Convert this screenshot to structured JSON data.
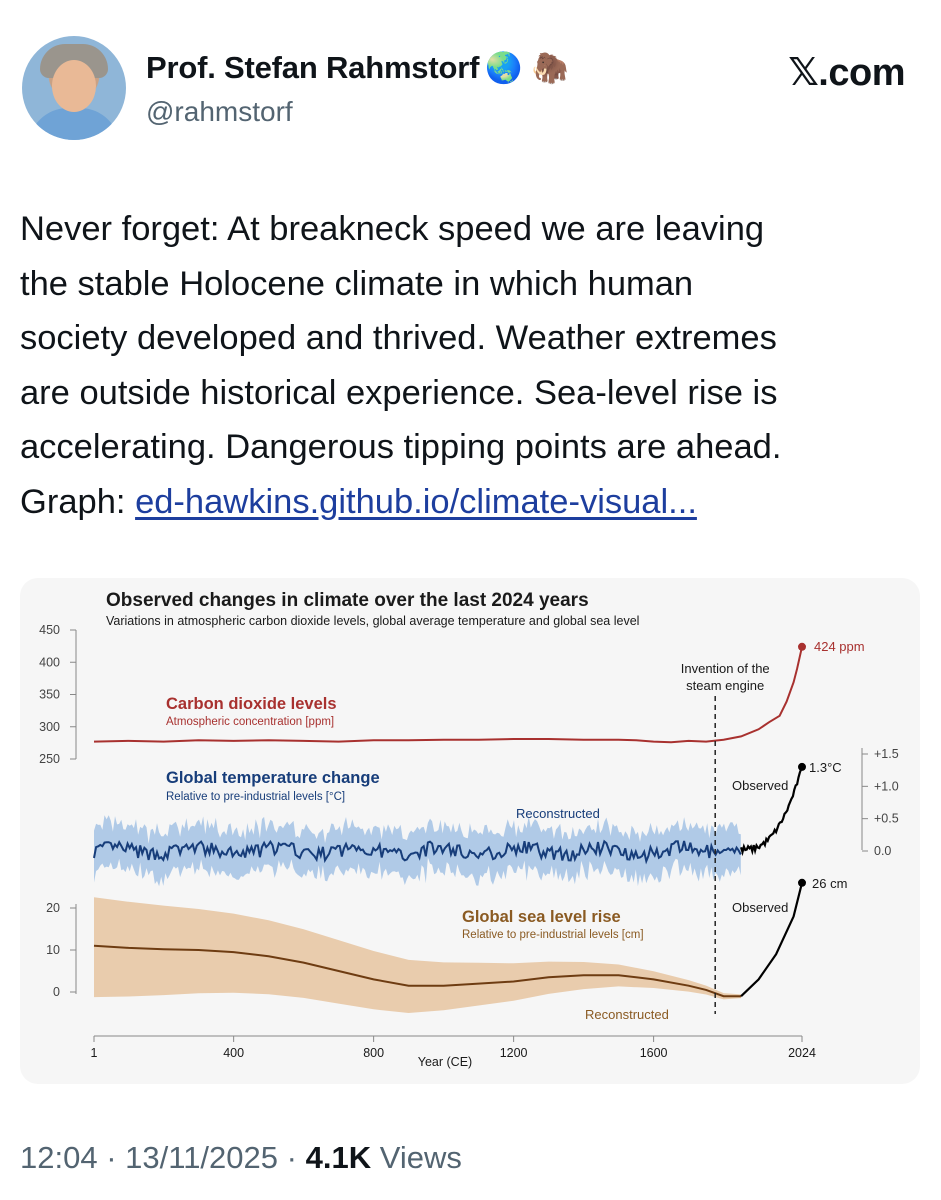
{
  "author": {
    "name": "Prof. Stefan Rahmstorf",
    "badges": "🌏 🦣",
    "handle": "@rahmstorf"
  },
  "brand": "𝕏.com",
  "tweet": {
    "lines": [
      "Never forget: At breakneck speed we are leaving",
      "the stable Holocene climate in which human",
      "society developed and thrived. Weather extremes",
      "are outside historical experience. Sea-level rise is",
      "accelerating. Dangerous tipping points are ahead."
    ],
    "graph_prefix": "Graph: ",
    "link_text": "ed-hawkins.github.io/climate-visual..."
  },
  "chart_data": {
    "type": "line",
    "title": "Observed changes in climate over the last 2024 years",
    "subtitle": "Variations in atmospheric carbon dioxide levels, global average temperature and global sea level",
    "xlabel": "Year (CE)",
    "xticks": [
      "1",
      "400",
      "800",
      "1200",
      "1600",
      "2024"
    ],
    "xlim": [
      1,
      2024
    ],
    "event": {
      "x": 1776,
      "label_line1": "Invention of the",
      "label_line2": "steam engine"
    },
    "co2": {
      "name": "Carbon dioxide levels",
      "desc": "Atmospheric concentration [ppm]",
      "color": "#a8312f",
      "yticks": [
        "450",
        "400",
        "350",
        "300",
        "250"
      ],
      "ylim": [
        250,
        450
      ],
      "end_label": "424 ppm",
      "x": [
        1,
        100,
        200,
        300,
        400,
        500,
        600,
        700,
        800,
        900,
        1000,
        1100,
        1200,
        1300,
        1400,
        1500,
        1550,
        1600,
        1650,
        1700,
        1750,
        1800,
        1850,
        1900,
        1930,
        1960,
        1980,
        2000,
        2010,
        2024
      ],
      "y": [
        277,
        278,
        277,
        279,
        278,
        279,
        278,
        277,
        279,
        279,
        280,
        280,
        281,
        281,
        280,
        280,
        279,
        277,
        276,
        278,
        277,
        280,
        285,
        296,
        307,
        317,
        339,
        369,
        390,
        424
      ]
    },
    "temperature": {
      "name": "Global temperature change",
      "desc": "Relative to pre-industrial levels [°C]",
      "color": "#173d7a",
      "band_color": "#a9c5e6",
      "yticks": [
        "+1.5",
        "+1.0",
        "+0.5",
        "0.0"
      ],
      "ylim": [
        0,
        1.5
      ],
      "reconstructed_label": "Reconstructed",
      "observed_label": "Observed",
      "end_label": "1.3°C",
      "end_value": 1.3
    },
    "sea_level": {
      "name": "Global sea level rise",
      "desc": "Relative to pre-industrial levels [cm]",
      "color": "#6e3c12",
      "band_color": "#e8c9a9",
      "yticks": [
        "20",
        "10",
        "0"
      ],
      "ylim": [
        0,
        20
      ],
      "reconstructed_label": "Reconstructed",
      "observed_label": "Observed",
      "end_label": "26 cm",
      "x": [
        1,
        100,
        200,
        300,
        400,
        500,
        600,
        700,
        800,
        900,
        1000,
        1100,
        1200,
        1300,
        1400,
        1500,
        1600,
        1700,
        1750,
        1800,
        1850,
        1900,
        1950,
        2000,
        2024
      ],
      "y": [
        11,
        10.5,
        10.2,
        10,
        9.5,
        8.5,
        7,
        5,
        3,
        1.5,
        1.5,
        2,
        2.5,
        3.5,
        4,
        4,
        3,
        1.5,
        0.5,
        -1,
        -1,
        3,
        9,
        18,
        26
      ]
    }
  },
  "footer": {
    "time": "12:04",
    "date": "13/11/2025",
    "views_count": "4.1K",
    "views_label": "Views"
  }
}
